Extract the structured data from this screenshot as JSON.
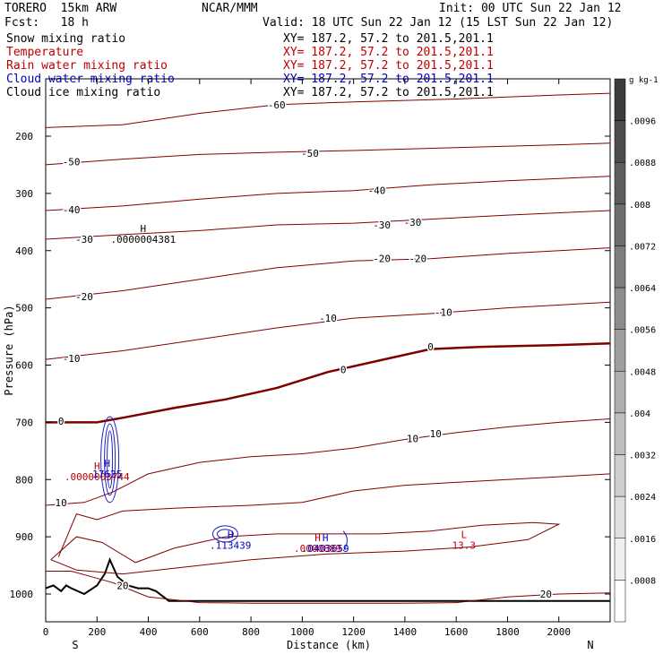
{
  "header": {
    "model": "TORERO  15km ARW",
    "center": "NCAR/MMM",
    "init": "Init: 00 UTC Sun 22 Jan 12",
    "fcst": "Fcst:   18 h",
    "valid": "Valid: 18 UTC Sun 22 Jan 12 (15 LST Sun 22 Jan 12)"
  },
  "fields": [
    {
      "name": "Snow mixing ratio",
      "xy": "XY= 187.2, 57.2 to 201.5,201.1",
      "color": "#000000"
    },
    {
      "name": "Temperature",
      "xy": "XY= 187.2, 57.2 to 201.5,201.1",
      "color": "#c00000"
    },
    {
      "name": "Rain water mixing ratio",
      "xy": "XY= 187.2, 57.2 to 201.5,201.1",
      "color": "#c00000"
    },
    {
      "name": "Cloud water mixing ratio",
      "xy": "XY= 187.2, 57.2 to 201.5,201.1",
      "color": "#0000c0"
    },
    {
      "name": "Cloud ice mixing ratio",
      "xy": "XY= 187.2, 57.2 to 201.5,201.1",
      "color": "#000000"
    }
  ],
  "colors": {
    "temperature": "#800000",
    "cloud_water": "#2020c0",
    "rain": "#c00000",
    "terrain": "#000000"
  },
  "chart_data": {
    "type": "contour",
    "xlabel": "Distance (km)",
    "ylabel": "Pressure (hPa)",
    "xlim": [
      0,
      2200
    ],
    "ylim": [
      1050,
      100
    ],
    "x_ticks": [
      0,
      200,
      400,
      600,
      800,
      1000,
      1200,
      1400,
      1600,
      1800,
      2000
    ],
    "y_ticks": [
      200,
      300,
      400,
      500,
      600,
      700,
      800,
      900,
      1000
    ],
    "x_end_labels": {
      "left": "S",
      "right": "N"
    },
    "colorbar": {
      "unit": "g kg-1",
      "ticks": [
        ".0096",
        ".0088",
        ".008",
        ".0072",
        ".0064",
        ".0056",
        ".0048",
        ".004",
        ".0032",
        ".0024",
        ".0016",
        ".0008"
      ]
    },
    "temperature_contours": [
      {
        "level": -60,
        "labels": [
          {
            "x": 900,
            "p": 145
          }
        ],
        "points": [
          [
            0,
            185
          ],
          [
            300,
            180
          ],
          [
            600,
            160
          ],
          [
            900,
            145
          ],
          [
            1200,
            140
          ],
          [
            1600,
            135
          ],
          [
            2000,
            128
          ],
          [
            2200,
            125
          ]
        ]
      },
      {
        "level": -50,
        "labels": [
          {
            "x": 100,
            "p": 245
          },
          {
            "x": 1030,
            "p": 230
          }
        ],
        "points": [
          [
            0,
            250
          ],
          [
            300,
            240
          ],
          [
            600,
            232
          ],
          [
            900,
            228
          ],
          [
            1200,
            225
          ],
          [
            1600,
            220
          ],
          [
            2000,
            215
          ],
          [
            2200,
            212
          ]
        ]
      },
      {
        "level": -40,
        "labels": [
          {
            "x": 100,
            "p": 328
          },
          {
            "x": 1290,
            "p": 295
          }
        ],
        "points": [
          [
            0,
            330
          ],
          [
            300,
            322
          ],
          [
            600,
            310
          ],
          [
            900,
            300
          ],
          [
            1200,
            295
          ],
          [
            1500,
            285
          ],
          [
            1800,
            278
          ],
          [
            2200,
            270
          ]
        ]
      },
      {
        "level": -30,
        "labels": [
          {
            "x": 150,
            "p": 380
          },
          {
            "x": 1310,
            "p": 355
          },
          {
            "x": 1430,
            "p": 350
          }
        ],
        "points": [
          [
            0,
            380
          ],
          [
            300,
            372
          ],
          [
            600,
            365
          ],
          [
            900,
            355
          ],
          [
            1200,
            352
          ],
          [
            1500,
            345
          ],
          [
            1800,
            338
          ],
          [
            2200,
            330
          ]
        ]
      },
      {
        "level": -20,
        "labels": [
          {
            "x": 150,
            "p": 480
          },
          {
            "x": 1310,
            "p": 414
          },
          {
            "x": 1450,
            "p": 414
          }
        ],
        "points": [
          [
            0,
            485
          ],
          [
            300,
            470
          ],
          [
            600,
            450
          ],
          [
            900,
            430
          ],
          [
            1200,
            418
          ],
          [
            1500,
            414
          ],
          [
            1800,
            405
          ],
          [
            2200,
            395
          ]
        ]
      },
      {
        "level": -10,
        "labels": [
          {
            "x": 100,
            "p": 588
          },
          {
            "x": 1100,
            "p": 518
          },
          {
            "x": 1550,
            "p": 508
          }
        ],
        "points": [
          [
            0,
            590
          ],
          [
            300,
            575
          ],
          [
            600,
            555
          ],
          [
            900,
            535
          ],
          [
            1200,
            518
          ],
          [
            1500,
            510
          ],
          [
            1800,
            500
          ],
          [
            2200,
            490
          ]
        ]
      },
      {
        "level": 0,
        "labels": [
          {
            "x": 60,
            "p": 698
          },
          {
            "x": 1160,
            "p": 608
          },
          {
            "x": 1500,
            "p": 568
          }
        ],
        "bold": true,
        "points": [
          [
            0,
            700
          ],
          [
            100,
            700
          ],
          [
            200,
            700
          ],
          [
            300,
            692
          ],
          [
            500,
            675
          ],
          [
            700,
            660
          ],
          [
            900,
            640
          ],
          [
            1100,
            612
          ],
          [
            1300,
            592
          ],
          [
            1500,
            572
          ],
          [
            1700,
            568
          ],
          [
            2000,
            565
          ],
          [
            2200,
            562
          ]
        ]
      },
      {
        "level": 10,
        "labels": [
          {
            "x": 60,
            "p": 840
          },
          {
            "x": 1430,
            "p": 728
          },
          {
            "x": 1520,
            "p": 720
          }
        ],
        "points": [
          [
            0,
            845
          ],
          [
            150,
            840
          ],
          [
            260,
            822
          ],
          [
            400,
            790
          ],
          [
            600,
            770
          ],
          [
            800,
            760
          ],
          [
            1000,
            755
          ],
          [
            1200,
            745
          ],
          [
            1400,
            730
          ],
          [
            1600,
            718
          ],
          [
            1800,
            708
          ],
          [
            2000,
            700
          ],
          [
            2200,
            694
          ]
        ]
      },
      {
        "level": 20,
        "labels": [
          {
            "x": 300,
            "p": 985
          },
          {
            "x": 1950,
            "p": 1000
          }
        ],
        "points": [
          [
            0,
            960
          ],
          [
            100,
            960
          ],
          [
            180,
            970
          ],
          [
            260,
            980
          ],
          [
            400,
            1005
          ],
          [
            600,
            1015
          ],
          [
            800,
            1016
          ],
          [
            1000,
            1016
          ],
          [
            1200,
            1016
          ],
          [
            1400,
            1016
          ],
          [
            1600,
            1015
          ],
          [
            1800,
            1005
          ],
          [
            2000,
            1000
          ],
          [
            2200,
            998
          ]
        ]
      }
    ],
    "aux_contours": [
      {
        "name": "warm-low-loop",
        "points": [
          [
            20,
            940
          ],
          [
            120,
            900
          ],
          [
            220,
            910
          ],
          [
            350,
            945
          ],
          [
            500,
            920
          ],
          [
            700,
            900
          ],
          [
            900,
            895
          ],
          [
            1100,
            895
          ],
          [
            1300,
            895
          ],
          [
            1500,
            890
          ],
          [
            1700,
            880
          ],
          [
            1900,
            875
          ],
          [
            2000,
            878
          ],
          [
            1880,
            905
          ],
          [
            1650,
            918
          ],
          [
            1400,
            925
          ],
          [
            1100,
            930
          ],
          [
            800,
            940
          ],
          [
            500,
            955
          ],
          [
            300,
            965
          ],
          [
            120,
            958
          ],
          [
            20,
            940
          ]
        ]
      },
      {
        "name": "mid-level-loop",
        "points": [
          [
            50,
            935
          ],
          [
            120,
            860
          ],
          [
            200,
            870
          ],
          [
            300,
            855
          ],
          [
            500,
            850
          ],
          [
            800,
            845
          ],
          [
            1000,
            840
          ],
          [
            1200,
            820
          ],
          [
            1400,
            810
          ],
          [
            1600,
            805
          ],
          [
            1800,
            800
          ],
          [
            2000,
            795
          ],
          [
            2200,
            790
          ]
        ]
      }
    ],
    "cloud_water": {
      "column": {
        "x": 250,
        "p_top": 690,
        "p_bottom": 840
      },
      "low_cell": {
        "x": 700,
        "p": 895
      }
    },
    "terrain": [
      [
        0,
        990
      ],
      [
        30,
        985
      ],
      [
        60,
        995
      ],
      [
        80,
        985
      ],
      [
        100,
        990
      ],
      [
        150,
        1000
      ],
      [
        200,
        985
      ],
      [
        230,
        965
      ],
      [
        250,
        940
      ],
      [
        280,
        970
      ],
      [
        320,
        985
      ],
      [
        360,
        990
      ],
      [
        400,
        990
      ],
      [
        430,
        995
      ],
      [
        480,
        1012
      ],
      [
        600,
        1012
      ],
      [
        1000,
        1012
      ],
      [
        1400,
        1012
      ],
      [
        1800,
        1012
      ],
      [
        2200,
        1012
      ]
    ],
    "annotations": [
      {
        "marker": "H",
        "value": ".0000004381",
        "x": 380,
        "p": 380,
        "color": "#000000"
      },
      {
        "marker": "H",
        "value": ".0000003744",
        "x": 200,
        "p": 795,
        "color": "#c00000"
      },
      {
        "marker": "H",
        "value": "17625",
        "x": 240,
        "p": 790,
        "color": "#0000c0"
      },
      {
        "marker": "H",
        "value": ".113439",
        "x": 720,
        "p": 915,
        "color": "#0000c0"
      },
      {
        "marker": "H",
        "value": ".0000889",
        "x": 1060,
        "p": 920,
        "color": "#c00000"
      },
      {
        "marker": "H",
        "value": ".0403659",
        "x": 1090,
        "p": 920,
        "color": "#0000c0"
      },
      {
        "marker": "L",
        "value": "13.3",
        "x": 1630,
        "p": 915,
        "color": "#c00000"
      }
    ]
  }
}
